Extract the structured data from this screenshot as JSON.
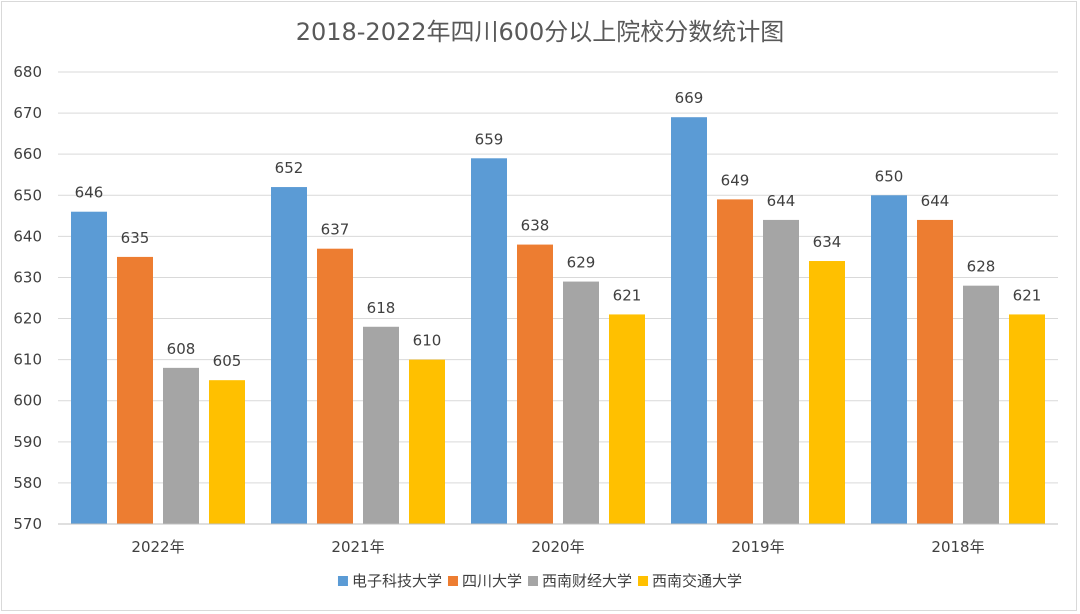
{
  "chart_data": {
    "type": "bar",
    "title": "2018-2022年四川600分以上院校分数统计图",
    "categories": [
      "2022年",
      "2021年",
      "2020年",
      "2019年",
      "2018年"
    ],
    "series": [
      {
        "name": "电子科技大学",
        "color": "#5b9bd5",
        "values": [
          646,
          652,
          659,
          669,
          650
        ]
      },
      {
        "name": "四川大学",
        "color": "#ed7d31",
        "values": [
          635,
          637,
          638,
          649,
          644
        ]
      },
      {
        "name": "西南财经大学",
        "color": "#a5a5a5",
        "values": [
          608,
          618,
          629,
          644,
          628
        ]
      },
      {
        "name": "西南交通大学",
        "color": "#ffc000",
        "values": [
          605,
          610,
          621,
          634,
          621
        ]
      }
    ],
    "ylim": [
      570,
      680
    ],
    "yticks": [
      570,
      580,
      590,
      600,
      610,
      620,
      630,
      640,
      650,
      660,
      670,
      680
    ],
    "grid": true,
    "legend": "bottom"
  }
}
